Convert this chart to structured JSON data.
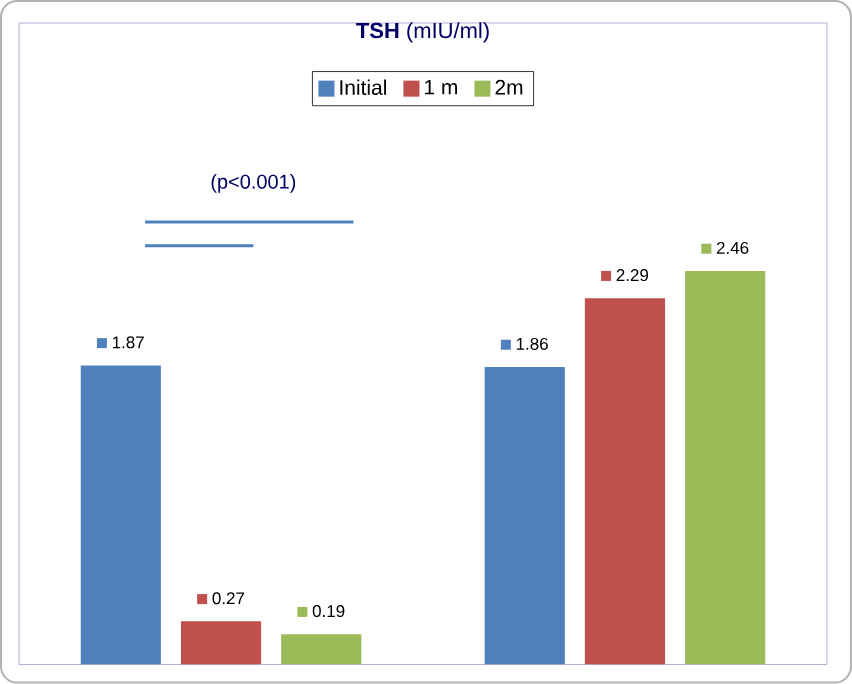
{
  "chart_data": {
    "type": "bar",
    "title": "**TSH** (mIU/ml)",
    "categories": [
      null,
      null
    ],
    "series": [
      {
        "name": "Initial",
        "color": "#4f81bd",
        "values": [
          1.87,
          1.86
        ]
      },
      {
        "name": "1 m",
        "color": "#c0504d",
        "values": [
          0.27,
          2.29
        ]
      },
      {
        "name": "2m",
        "color": "#9bbb59",
        "values": [
          0.19,
          2.46
        ]
      }
    ],
    "annotations": [
      "(p<0.001)"
    ],
    "data_labels": true,
    "legend": "top"
  }
}
